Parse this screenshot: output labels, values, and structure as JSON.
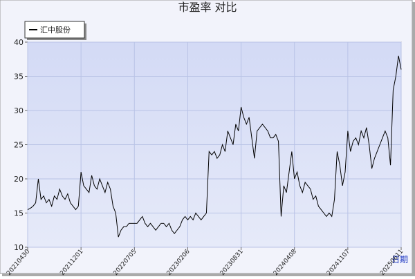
{
  "chart_data": {
    "type": "line",
    "title": "市盈率  对比",
    "x_label": "日期",
    "xlim": [
      0,
      140
    ],
    "xticks": [
      {
        "value": 0,
        "label": "20210430"
      },
      {
        "value": 20,
        "label": "20211201"
      },
      {
        "value": 40,
        "label": "20220705"
      },
      {
        "value": 60,
        "label": "20230206"
      },
      {
        "value": 80,
        "label": "20230831"
      },
      {
        "value": 100,
        "label": "20240408"
      },
      {
        "value": 120,
        "label": "20241107"
      },
      {
        "value": 140,
        "label": "20250611"
      }
    ],
    "ylim": [
      10,
      40
    ],
    "yticks": [
      10,
      15,
      20,
      25,
      30,
      35,
      40
    ],
    "grid": true,
    "legend": "top-left",
    "series": [
      {
        "name": "汇中股份",
        "color": "#000000",
        "values": [
          15.5,
          15.7,
          16,
          16.5,
          20,
          17,
          17.5,
          16.5,
          17,
          16,
          17.5,
          17,
          18.5,
          17.5,
          17,
          17.8,
          16.5,
          16,
          15.5,
          16,
          21,
          19,
          18.5,
          18,
          20.5,
          19,
          18.5,
          20,
          19,
          18,
          19.5,
          18.5,
          16,
          15,
          11.5,
          12.5,
          13,
          13,
          13.5,
          13.5,
          13.5,
          13.5,
          14,
          14.5,
          13.5,
          13,
          13.5,
          13,
          12.5,
          13,
          13.5,
          13.5,
          13,
          13.5,
          12.5,
          12,
          12.5,
          13,
          14,
          14.5,
          14,
          14.5,
          14,
          15,
          14.5,
          14,
          14.5,
          15,
          24,
          23.5,
          24,
          23,
          23.5,
          25,
          24,
          27,
          26,
          25,
          28,
          27,
          30.5,
          29,
          28,
          29,
          26,
          23,
          27,
          27.5,
          28,
          27.5,
          27,
          26,
          26,
          26.5,
          25.5,
          14.5,
          19,
          18,
          21,
          24,
          20,
          21,
          19,
          18,
          19.5,
          19,
          18.5,
          17,
          17.5,
          16,
          15.5,
          15,
          14.5,
          15,
          14.5,
          17,
          24,
          22,
          19,
          21,
          27,
          24,
          25.5,
          26,
          25,
          27,
          26,
          27.5,
          25,
          21.5,
          23,
          24,
          25,
          26,
          27,
          26,
          22,
          33,
          35,
          38,
          36
        ]
      }
    ]
  }
}
